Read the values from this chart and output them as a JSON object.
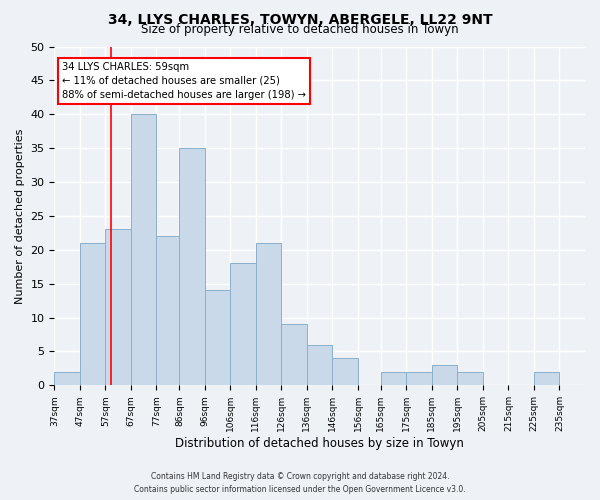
{
  "title": "34, LLYS CHARLES, TOWYN, ABERGELE, LL22 9NT",
  "subtitle": "Size of property relative to detached houses in Towyn",
  "xlabel": "Distribution of detached houses by size in Towyn",
  "ylabel": "Number of detached properties",
  "bar_edges": [
    37,
    47,
    57,
    67,
    77,
    86,
    96,
    106,
    116,
    126,
    136,
    146,
    156,
    165,
    175,
    185,
    195,
    205,
    215,
    225,
    235,
    245
  ],
  "bar_heights": [
    2,
    21,
    23,
    40,
    22,
    35,
    14,
    18,
    21,
    9,
    6,
    4,
    0,
    2,
    2,
    3,
    2,
    0,
    0,
    2,
    0
  ],
  "tick_labels": [
    "37sqm",
    "47sqm",
    "57sqm",
    "67sqm",
    "77sqm",
    "86sqm",
    "96sqm",
    "106sqm",
    "116sqm",
    "126sqm",
    "136sqm",
    "146sqm",
    "156sqm",
    "165sqm",
    "175sqm",
    "185sqm",
    "195sqm",
    "205sqm",
    "215sqm",
    "225sqm",
    "235sqm"
  ],
  "bar_color": "#c9d9ea",
  "bar_edge_color": "#8ab0cc",
  "red_line_x": 59,
  "annotation_line1": "34 LLYS CHARLES: 59sqm",
  "annotation_line2": "← 11% of detached houses are smaller (25)",
  "annotation_line3": "88% of semi-detached houses are larger (198) →",
  "ylim": [
    0,
    50
  ],
  "yticks": [
    0,
    5,
    10,
    15,
    20,
    25,
    30,
    35,
    40,
    45,
    50
  ],
  "footer1": "Contains HM Land Registry data © Crown copyright and database right 2024.",
  "footer2": "Contains public sector information licensed under the Open Government Licence v3.0.",
  "background_color": "#eef2f7",
  "grid_color": "#ffffff"
}
